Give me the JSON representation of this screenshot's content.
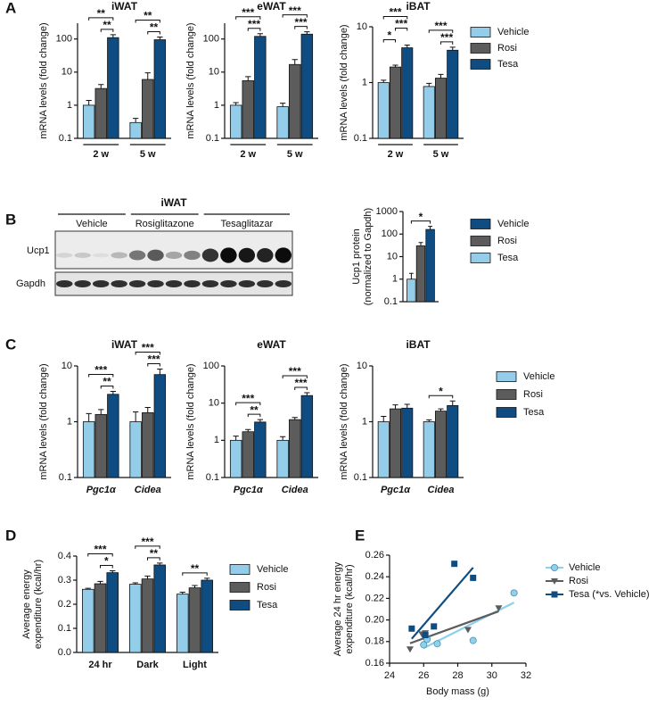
{
  "blot": {
    "panel": "B",
    "title": "iWAT",
    "groups": [
      "Vehicle",
      "Rosiglitazone",
      "Tesaglitazar"
    ],
    "rows": [
      "Ucp1",
      "Gapdh"
    ]
  },
  "chart_data": [
    {
      "type": "bar",
      "panel": "A",
      "title": "iWAT",
      "ylabel": "mRNA levels (fold change)",
      "log_scale": true,
      "ylim": [
        0.1,
        300
      ],
      "yticks": [
        0.1,
        1,
        10,
        100
      ],
      "categories": [
        "2 w",
        "5 w"
      ],
      "series": [
        {
          "name": "Vehicle",
          "color": "#93cdea",
          "values": [
            1,
            0.3
          ],
          "errors": [
            0.4,
            0.1
          ]
        },
        {
          "name": "Rosi",
          "color": "#5c5c5c",
          "values": [
            3.2,
            6
          ],
          "errors": [
            1,
            3.5
          ]
        },
        {
          "name": "Tesa",
          "color": "#0f4c81",
          "values": [
            110,
            95
          ],
          "errors": [
            25,
            20
          ]
        }
      ],
      "annotations": [
        {
          "text": "**",
          "category": "2 w",
          "pair": [
            "Rosi",
            "Tesa"
          ]
        },
        {
          "text": "**",
          "category": "2 w",
          "pair": [
            "Vehicle",
            "Tesa"
          ]
        },
        {
          "text": "**",
          "category": "5 w",
          "pair": [
            "Rosi",
            "Tesa"
          ]
        },
        {
          "text": "**",
          "category": "5 w",
          "pair": [
            "Vehicle",
            "Tesa"
          ]
        }
      ]
    },
    {
      "type": "bar",
      "title": "eWAT",
      "ylabel": "mRNA levels (fold change)",
      "log_scale": true,
      "ylim": [
        0.1,
        300
      ],
      "yticks": [
        0.1,
        1,
        10,
        100
      ],
      "categories": [
        "2 w",
        "5 w"
      ],
      "series": [
        {
          "name": "Vehicle",
          "color": "#93cdea",
          "values": [
            1,
            0.9
          ],
          "errors": [
            0.2,
            0.25
          ]
        },
        {
          "name": "Rosi",
          "color": "#5c5c5c",
          "values": [
            5.5,
            17
          ],
          "errors": [
            1.8,
            7
          ]
        },
        {
          "name": "Tesa",
          "color": "#0f4c81",
          "values": [
            120,
            140
          ],
          "errors": [
            25,
            25
          ]
        }
      ],
      "annotations": [
        {
          "text": "***",
          "category": "2 w",
          "pair": [
            "Rosi",
            "Tesa"
          ]
        },
        {
          "text": "***",
          "category": "2 w",
          "pair": [
            "Vehicle",
            "Tesa"
          ]
        },
        {
          "text": "***",
          "category": "5 w",
          "pair": [
            "Rosi",
            "Tesa"
          ]
        },
        {
          "text": "***",
          "category": "5 w",
          "pair": [
            "Vehicle",
            "Tesa"
          ]
        }
      ]
    },
    {
      "type": "bar",
      "title": "iBAT",
      "ylabel": "mRNA levels (fold change)",
      "log_scale": true,
      "ylim": [
        0.1,
        10
      ],
      "yticks": [
        0.1,
        1,
        10
      ],
      "categories": [
        "2 w",
        "5 w"
      ],
      "legend": "right",
      "series": [
        {
          "name": "Vehicle",
          "color": "#93cdea",
          "values": [
            1,
            0.85
          ],
          "errors": [
            0.1,
            0.12
          ]
        },
        {
          "name": "Rosi",
          "color": "#5c5c5c",
          "values": [
            1.9,
            1.2
          ],
          "errors": [
            0.15,
            0.2
          ]
        },
        {
          "name": "Tesa",
          "color": "#0f4c81",
          "values": [
            4.2,
            3.8
          ],
          "errors": [
            0.5,
            0.5
          ]
        }
      ],
      "annotations": [
        {
          "text": "*",
          "category": "2 w",
          "pair": [
            "Vehicle",
            "Rosi"
          ]
        },
        {
          "text": "***",
          "category": "2 w",
          "pair": [
            "Rosi",
            "Tesa"
          ]
        },
        {
          "text": "***",
          "category": "2 w",
          "pair": [
            "Vehicle",
            "Tesa"
          ]
        },
        {
          "text": "***",
          "category": "5 w",
          "pair": [
            "Rosi",
            "Tesa"
          ]
        },
        {
          "text": "***",
          "category": "5 w",
          "pair": [
            "Vehicle",
            "Tesa"
          ]
        }
      ]
    },
    {
      "type": "bar",
      "ylabel": [
        "Ucp1 protein",
        "(normalized to Gapdh)"
      ],
      "log_scale": true,
      "ylim": [
        0.1,
        1000
      ],
      "yticks": [
        0.1,
        1,
        10,
        100,
        1000
      ],
      "categories": [
        null
      ],
      "legend": "right",
      "legend_colors": [
        "#0f4c81",
        "#5c5c5c",
        "#93cdea"
      ],
      "series": [
        {
          "name": "Vehicle",
          "color": "#93cdea",
          "values": [
            1
          ],
          "errors": [
            0.8
          ]
        },
        {
          "name": "Rosi",
          "color": "#5c5c5c",
          "values": [
            30
          ],
          "errors": [
            12
          ]
        },
        {
          "name": "Tesa",
          "color": "#0f4c81",
          "values": [
            160
          ],
          "errors": [
            60
          ]
        }
      ],
      "annotations": [
        {
          "text": "*",
          "category": null,
          "pair": [
            "Vehicle",
            "Tesa"
          ]
        }
      ]
    },
    {
      "type": "bar",
      "panel": "C",
      "title": "iWAT",
      "ylabel": "mRNA levels (fold change)",
      "log_scale": true,
      "ylim": [
        0.1,
        10
      ],
      "yticks": [
        0.1,
        1,
        10
      ],
      "categories": [
        "Pgc1α",
        "Cidea"
      ],
      "series": [
        {
          "name": "Vehicle",
          "color": "#93cdea",
          "values": [
            1,
            1
          ],
          "errors": [
            0.4,
            0.5
          ]
        },
        {
          "name": "Rosi",
          "color": "#5c5c5c",
          "values": [
            1.35,
            1.45
          ],
          "errors": [
            0.3,
            0.35
          ]
        },
        {
          "name": "Tesa",
          "color": "#0f4c81",
          "values": [
            3.1,
            7
          ],
          "errors": [
            0.4,
            1.8
          ]
        }
      ],
      "annotations": [
        {
          "text": "**",
          "category": "Pgc1α",
          "pair": [
            "Rosi",
            "Tesa"
          ]
        },
        {
          "text": "***",
          "category": "Pgc1α",
          "pair": [
            "Vehicle",
            "Tesa"
          ]
        },
        {
          "text": "***",
          "category": "Cidea",
          "pair": [
            "Rosi",
            "Tesa"
          ]
        },
        {
          "text": "***",
          "category": "Cidea",
          "pair": [
            "Vehicle",
            "Tesa"
          ]
        }
      ]
    },
    {
      "type": "bar",
      "title": "eWAT",
      "ylabel": "mRNA levels (fold change)",
      "log_scale": true,
      "ylim": [
        0.1,
        100
      ],
      "yticks": [
        0.1,
        1,
        10,
        100
      ],
      "categories": [
        "Pgc1α",
        "Cidea"
      ],
      "series": [
        {
          "name": "Vehicle",
          "color": "#93cdea",
          "values": [
            1,
            1
          ],
          "errors": [
            0.3,
            0.25
          ]
        },
        {
          "name": "Rosi",
          "color": "#5c5c5c",
          "values": [
            1.7,
            3.6
          ],
          "errors": [
            0.25,
            0.5
          ]
        },
        {
          "name": "Tesa",
          "color": "#0f4c81",
          "values": [
            3.1,
            16
          ],
          "errors": [
            0.5,
            3
          ]
        }
      ],
      "annotations": [
        {
          "text": "**",
          "category": "Pgc1α",
          "pair": [
            "Rosi",
            "Tesa"
          ]
        },
        {
          "text": "***",
          "category": "Pgc1α",
          "pair": [
            "Vehicle",
            "Tesa"
          ]
        },
        {
          "text": "***",
          "category": "Cidea",
          "pair": [
            "Rosi",
            "Tesa"
          ]
        },
        {
          "text": "***",
          "category": "Cidea",
          "pair": [
            "Vehicle",
            "Tesa"
          ]
        }
      ]
    },
    {
      "type": "bar",
      "title": "iBAT",
      "ylabel": "mRNA levels (fold change)",
      "log_scale": true,
      "ylim": [
        0.1,
        10
      ],
      "yticks": [
        0.1,
        1,
        10
      ],
      "categories": [
        "Pgc1α",
        "Cidea"
      ],
      "legend": "right",
      "series": [
        {
          "name": "Vehicle",
          "color": "#93cdea",
          "values": [
            1,
            1
          ],
          "errors": [
            0.25,
            0.08
          ]
        },
        {
          "name": "Rosi",
          "color": "#5c5c5c",
          "values": [
            1.7,
            1.55
          ],
          "errors": [
            0.3,
            0.15
          ]
        },
        {
          "name": "Tesa",
          "color": "#0f4c81",
          "values": [
            1.75,
            1.95
          ],
          "errors": [
            0.3,
            0.4
          ]
        }
      ],
      "annotations": [
        {
          "text": "*",
          "category": "Cidea",
          "pair": [
            "Vehicle",
            "Tesa"
          ]
        }
      ]
    },
    {
      "type": "bar",
      "panel": "D",
      "ylabel": [
        "Average energy",
        "expenditure (kcal/hr)"
      ],
      "log_scale": false,
      "ylim": [
        0,
        0.4
      ],
      "yticks": [
        {
          "value": 0,
          "label": "0.0"
        },
        0.1,
        0.2,
        0.3,
        0.4
      ],
      "categories": [
        "24 hr",
        "Dark",
        "Light"
      ],
      "legend": "right",
      "series": [
        {
          "name": "Vehicle",
          "color": "#93cdea",
          "values": [
            0.262,
            0.283,
            0.242
          ],
          "errors": [
            0.004,
            0.006,
            0.008
          ]
        },
        {
          "name": "Rosi",
          "color": "#5c5c5c",
          "values": [
            0.285,
            0.305,
            0.268
          ],
          "errors": [
            0.01,
            0.012,
            0.01
          ]
        },
        {
          "name": "Tesa",
          "color": "#0f4c81",
          "values": [
            0.331,
            0.363,
            0.3
          ],
          "errors": [
            0.008,
            0.008,
            0.008
          ]
        }
      ],
      "annotations": [
        {
          "text": "*",
          "category": "24 hr",
          "pair": [
            "Rosi",
            "Tesa"
          ]
        },
        {
          "text": "***",
          "category": "24 hr",
          "pair": [
            "Vehicle",
            "Tesa"
          ]
        },
        {
          "text": "**",
          "category": "Dark",
          "pair": [
            "Rosi",
            "Tesa"
          ]
        },
        {
          "text": "***",
          "category": "Dark",
          "pair": [
            "Vehicle",
            "Tesa"
          ]
        },
        {
          "text": "**",
          "category": "Light",
          "pair": [
            "Vehicle",
            "Tesa"
          ]
        }
      ]
    },
    {
      "type": "scatter",
      "panel": "E",
      "xlabel": "Body mass (g)",
      "ylabel": [
        "Average 24 hr energy",
        "expenditure (kcal/hr)"
      ],
      "xlim": [
        24,
        32
      ],
      "xticks": [
        24,
        26,
        28,
        30,
        32
      ],
      "ylim": [
        0.16,
        0.26
      ],
      "yticks": [
        0.16,
        0.18,
        {
          "value": 0.2,
          "label": "0.20"
        },
        0.22,
        0.24,
        0.26
      ],
      "fit_lines": true,
      "legend": "right",
      "series": [
        {
          "name": "Vehicle",
          "color": "#8fd0ea",
          "marker": "circle",
          "x": [
            26.0,
            26.2,
            26.8,
            28.9,
            31.3
          ],
          "values": [
            0.177,
            0.182,
            0.178,
            0.181,
            0.225
          ]
        },
        {
          "name": "Rosi",
          "color": "#5c5c5c",
          "marker": "triangle-down",
          "x": [
            25.2,
            25.9,
            26.1,
            28.6,
            30.4
          ],
          "values": [
            0.173,
            0.187,
            0.188,
            0.191,
            0.211
          ]
        },
        {
          "name": "Tesa (*vs. Vehicle)",
          "color": "#0f4c81",
          "marker": "square",
          "x": [
            25.3,
            26.1,
            26.6,
            27.8,
            28.9
          ],
          "values": [
            0.192,
            0.186,
            0.194,
            0.252,
            0.239
          ]
        }
      ]
    }
  ]
}
